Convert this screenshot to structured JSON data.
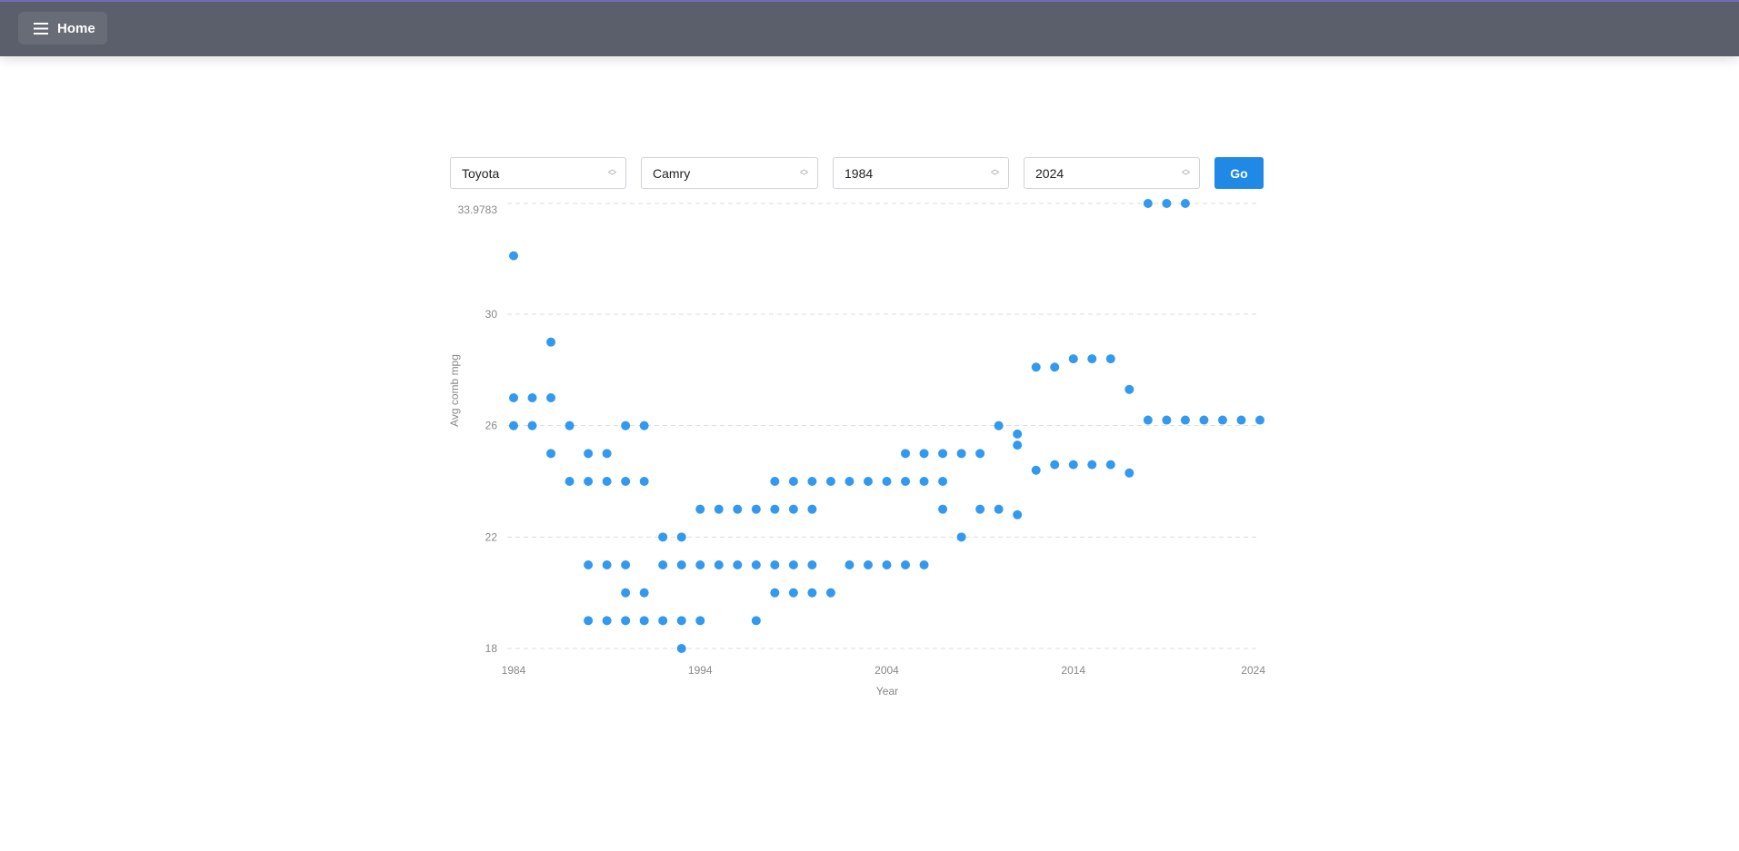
{
  "header": {
    "home_label": "Home",
    "menu_icon": "hamburger-icon"
  },
  "filters": {
    "make": "Toyota",
    "model": "Camry",
    "start_year": "1984",
    "end_year": "2024",
    "go_label": "Go"
  },
  "chart_data": {
    "type": "scatter",
    "xlabel": "Year",
    "ylabel": "Avg comb mpg",
    "xlim": [
      1984,
      2024
    ],
    "ylim": [
      18,
      33.9783
    ],
    "xticks": [
      "1984",
      "1994",
      "2004",
      "2014",
      "2024"
    ],
    "yticks": [
      "18",
      "22",
      "26",
      "30",
      "33.9783"
    ],
    "grid": "horizontal dashed",
    "color": "#3399ee",
    "points": [
      [
        1984,
        32.1
      ],
      [
        1984,
        27
      ],
      [
        1984,
        26
      ],
      [
        1985,
        27
      ],
      [
        1985,
        26
      ],
      [
        1986,
        29
      ],
      [
        1986,
        27
      ],
      [
        1986,
        25
      ],
      [
        1987,
        26
      ],
      [
        1987,
        24
      ],
      [
        1988,
        25
      ],
      [
        1988,
        24
      ],
      [
        1988,
        21
      ],
      [
        1988,
        19
      ],
      [
        1989,
        25
      ],
      [
        1989,
        24
      ],
      [
        1989,
        21
      ],
      [
        1989,
        19
      ],
      [
        1990,
        26
      ],
      [
        1990,
        24
      ],
      [
        1990,
        21
      ],
      [
        1990,
        20
      ],
      [
        1990,
        19
      ],
      [
        1991,
        26
      ],
      [
        1991,
        24
      ],
      [
        1991,
        20
      ],
      [
        1991,
        19
      ],
      [
        1992,
        22
      ],
      [
        1992,
        21
      ],
      [
        1992,
        19
      ],
      [
        1993,
        22
      ],
      [
        1993,
        21
      ],
      [
        1993,
        19
      ],
      [
        1993,
        18
      ],
      [
        1994,
        23
      ],
      [
        1994,
        21
      ],
      [
        1994,
        19
      ],
      [
        1995,
        23
      ],
      [
        1995,
        21
      ],
      [
        1996,
        23
      ],
      [
        1996,
        21
      ],
      [
        1997,
        23
      ],
      [
        1997,
        21
      ],
      [
        1997,
        19
      ],
      [
        1998,
        24
      ],
      [
        1998,
        23
      ],
      [
        1998,
        21
      ],
      [
        1998,
        20
      ],
      [
        1999,
        24
      ],
      [
        1999,
        23
      ],
      [
        1999,
        21
      ],
      [
        1999,
        20
      ],
      [
        2000,
        24
      ],
      [
        2000,
        23
      ],
      [
        2000,
        21
      ],
      [
        2000,
        20
      ],
      [
        2001,
        24
      ],
      [
        2001,
        20
      ],
      [
        2002,
        24
      ],
      [
        2002,
        21
      ],
      [
        2003,
        24
      ],
      [
        2003,
        21
      ],
      [
        2004,
        24
      ],
      [
        2004,
        21
      ],
      [
        2005,
        25
      ],
      [
        2005,
        24
      ],
      [
        2005,
        21
      ],
      [
        2006,
        25
      ],
      [
        2006,
        24
      ],
      [
        2006,
        21
      ],
      [
        2007,
        25
      ],
      [
        2007,
        24
      ],
      [
        2007,
        23
      ],
      [
        2008,
        25
      ],
      [
        2008,
        22
      ],
      [
        2009,
        25
      ],
      [
        2009,
        23
      ],
      [
        2010,
        26
      ],
      [
        2010,
        23
      ],
      [
        2011,
        25.7
      ],
      [
        2011,
        25.3
      ],
      [
        2011,
        22.8
      ],
      [
        2012,
        28.1
      ],
      [
        2012,
        24.4
      ],
      [
        2013,
        28.1
      ],
      [
        2013,
        24.6
      ],
      [
        2014,
        28.4
      ],
      [
        2014,
        24.6
      ],
      [
        2015,
        28.4
      ],
      [
        2015,
        24.6
      ],
      [
        2016,
        28.4
      ],
      [
        2016,
        24.6
      ],
      [
        2017,
        27.3
      ],
      [
        2017,
        24.3
      ],
      [
        2018,
        33.9783
      ],
      [
        2018,
        26.2
      ],
      [
        2019,
        33.9783
      ],
      [
        2019,
        26.2
      ],
      [
        2020,
        33.9783
      ],
      [
        2020,
        26.2
      ],
      [
        2021,
        26.2
      ],
      [
        2022,
        26.2
      ],
      [
        2023,
        26.2
      ],
      [
        2024,
        26.2
      ]
    ]
  }
}
